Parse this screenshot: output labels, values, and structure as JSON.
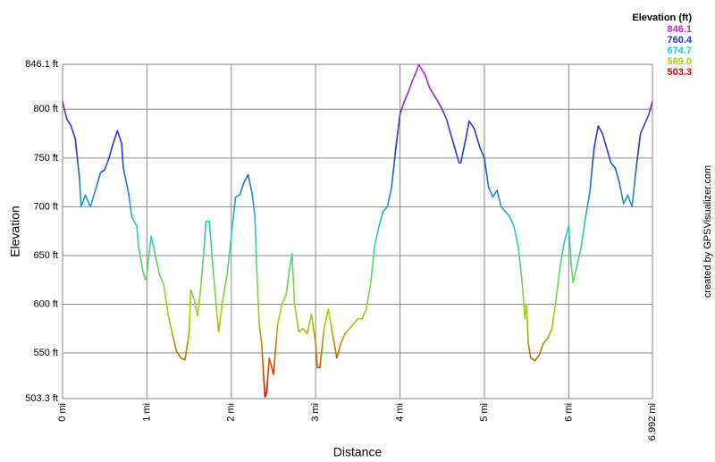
{
  "chart_data": {
    "type": "line",
    "x_label": "Distance",
    "y_label": "Elevation",
    "credit": "created by GPSVisualizer.com",
    "legend_title": "Elevation (ft)",
    "color_scale": {
      "values": [
        846.1,
        760.4,
        674.7,
        589,
        503.3
      ],
      "value_labels": [
        "846.1",
        "760.4",
        "674.7",
        "589.0",
        "503.3"
      ],
      "colors": [
        "#cc22cc",
        "#2233cc",
        "#22cccc",
        "#aad400",
        "#dd0000"
      ]
    },
    "xlim": [
      0,
      6.992
    ],
    "ylim": [
      503.3,
      846.1
    ],
    "grid": true,
    "xticks": [
      {
        "value": 0,
        "label": "0 mi"
      },
      {
        "value": 1,
        "label": "1 mi"
      },
      {
        "value": 2,
        "label": "2 mi"
      },
      {
        "value": 3,
        "label": "3 mi"
      },
      {
        "value": 4,
        "label": "4 mi"
      },
      {
        "value": 5,
        "label": "5 mi"
      },
      {
        "value": 6,
        "label": "6 mi"
      },
      {
        "value": 6.992,
        "label": "6.992 mi"
      }
    ],
    "yticks": [
      {
        "value": 503.3,
        "label": "503.3 ft"
      },
      {
        "value": 550,
        "label": "550 ft"
      },
      {
        "value": 600,
        "label": "600 ft"
      },
      {
        "value": 650,
        "label": "650 ft"
      },
      {
        "value": 700,
        "label": "700 ft"
      },
      {
        "value": 750,
        "label": "750 ft"
      },
      {
        "value": 800,
        "label": "800 ft"
      },
      {
        "value": 846.1,
        "label": "846.1 ft"
      }
    ],
    "x": [
      0,
      0.05,
      0.1,
      0.15,
      0.2,
      0.22,
      0.27,
      0.33,
      0.4,
      0.45,
      0.5,
      0.55,
      0.6,
      0.65,
      0.7,
      0.72,
      0.78,
      0.82,
      0.88,
      0.9,
      0.95,
      0.98,
      1.0,
      1.03,
      1.05,
      1.1,
      1.15,
      1.2,
      1.25,
      1.3,
      1.35,
      1.4,
      1.45,
      1.5,
      1.52,
      1.56,
      1.6,
      1.63,
      1.68,
      1.7,
      1.74,
      1.78,
      1.82,
      1.85,
      1.9,
      1.95,
      2.0,
      2.05,
      2.1,
      2.15,
      2.2,
      2.25,
      2.28,
      2.3,
      2.33,
      2.36,
      2.38,
      2.4,
      2.42,
      2.45,
      2.5,
      2.55,
      2.6,
      2.65,
      2.68,
      2.72,
      2.75,
      2.8,
      2.85,
      2.9,
      2.95,
      3.0,
      3.02,
      3.05,
      3.1,
      3.15,
      3.2,
      3.25,
      3.3,
      3.35,
      3.4,
      3.5,
      3.55,
      3.6,
      3.65,
      3.7,
      3.75,
      3.8,
      3.85,
      3.9,
      3.95,
      4.0,
      4.05,
      4.1,
      4.15,
      4.2,
      4.22,
      4.3,
      4.35,
      4.4,
      4.45,
      4.5,
      4.55,
      4.6,
      4.65,
      4.7,
      4.72,
      4.78,
      4.82,
      4.88,
      4.95,
      5.0,
      5.05,
      5.1,
      5.15,
      5.2,
      5.3,
      5.35,
      5.4,
      5.45,
      5.48,
      5.5,
      5.52,
      5.55,
      5.6,
      5.65,
      5.7,
      5.75,
      5.8,
      5.85,
      5.9,
      5.95,
      6.0,
      6.03,
      6.05,
      6.1,
      6.15,
      6.2,
      6.25,
      6.3,
      6.35,
      6.4,
      6.45,
      6.5,
      6.55,
      6.6,
      6.65,
      6.7,
      6.75,
      6.8,
      6.85,
      6.9,
      6.95,
      6.992
    ],
    "values": [
      808,
      790,
      783,
      770,
      730,
      700,
      712,
      700,
      720,
      735,
      738,
      750,
      765,
      778,
      765,
      740,
      715,
      690,
      680,
      660,
      635,
      625,
      630,
      655,
      670,
      650,
      630,
      620,
      590,
      570,
      552,
      545,
      543,
      570,
      615,
      605,
      588,
      610,
      660,
      685,
      685,
      640,
      600,
      572,
      605,
      630,
      670,
      710,
      712,
      725,
      733,
      712,
      690,
      640,
      580,
      560,
      530,
      505,
      510,
      545,
      528,
      580,
      600,
      610,
      630,
      652,
      600,
      572,
      575,
      570,
      590,
      560,
      535,
      535,
      575,
      595,
      570,
      545,
      560,
      570,
      575,
      585,
      585,
      595,
      620,
      660,
      680,
      695,
      700,
      720,
      760,
      795,
      808,
      818,
      830,
      840,
      846.1,
      835,
      822,
      815,
      808,
      800,
      790,
      775,
      760,
      745,
      745,
      770,
      788,
      780,
      760,
      750,
      720,
      710,
      717,
      700,
      690,
      680,
      660,
      620,
      585,
      600,
      560,
      545,
      542,
      548,
      560,
      565,
      575,
      605,
      640,
      665,
      680,
      640,
      622,
      640,
      660,
      690,
      715,
      760,
      783,
      775,
      760,
      745,
      740,
      725,
      703,
      712,
      700,
      740,
      775,
      785,
      795,
      808
    ]
  }
}
